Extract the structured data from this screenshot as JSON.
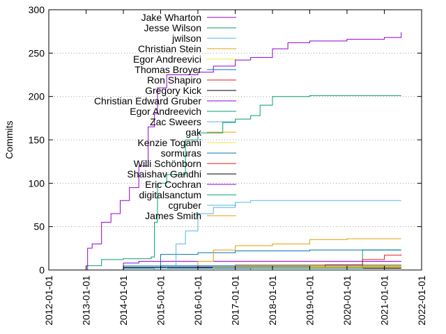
{
  "chart_data": {
    "type": "line",
    "title": "",
    "xlabel": "",
    "ylabel": "Commits",
    "xlim": [
      "2012-01-01",
      "2022-01-01"
    ],
    "ylim": [
      0,
      300
    ],
    "x_ticks": [
      "2012-01-01",
      "2013-01-01",
      "2014-01-01",
      "2015-01-01",
      "2016-01-01",
      "2017-01-01",
      "2018-01-01",
      "2019-01-01",
      "2020-01-01",
      "2021-01-01",
      "2022-01-01"
    ],
    "y_ticks": [
      0,
      50,
      100,
      150,
      200,
      250,
      300
    ],
    "grid": "horizontal dotted at y-ticks",
    "legend_position": "top-left inside",
    "series": [
      {
        "name": "Jake Wharton",
        "color": "#9400d3",
        "points": [
          [
            "2013-01-01",
            0
          ],
          [
            "2013-01-15",
            25
          ],
          [
            "2013-03-01",
            30
          ],
          [
            "2013-06-01",
            55
          ],
          [
            "2013-09-01",
            65
          ],
          [
            "2013-12-01",
            80
          ],
          [
            "2014-03-01",
            95
          ],
          [
            "2014-06-01",
            120
          ],
          [
            "2014-09-01",
            165
          ],
          [
            "2014-11-01",
            180
          ],
          [
            "2014-12-01",
            210
          ],
          [
            "2015-03-01",
            225
          ],
          [
            "2015-06-01",
            225
          ],
          [
            "2016-01-01",
            228
          ],
          [
            "2016-06-01",
            235
          ],
          [
            "2017-01-01",
            242
          ],
          [
            "2017-06-01",
            245
          ],
          [
            "2018-01-01",
            255
          ],
          [
            "2018-06-01",
            262
          ],
          [
            "2019-01-01",
            264
          ],
          [
            "2020-01-01",
            266
          ],
          [
            "2021-01-01",
            268
          ],
          [
            "2021-06-15",
            274
          ]
        ]
      },
      {
        "name": "Jesse Wilson",
        "color": "#009e73",
        "points": [
          [
            "2012-06-01",
            0
          ],
          [
            "2013-01-01",
            5
          ],
          [
            "2013-06-01",
            12
          ],
          [
            "2014-01-01",
            13
          ],
          [
            "2014-10-01",
            15
          ],
          [
            "2014-11-01",
            55
          ],
          [
            "2014-12-01",
            100
          ],
          [
            "2015-03-01",
            110
          ],
          [
            "2015-09-01",
            150
          ],
          [
            "2016-01-01",
            158
          ],
          [
            "2016-09-01",
            170
          ],
          [
            "2017-01-01",
            174
          ],
          [
            "2017-06-01",
            178
          ],
          [
            "2017-09-01",
            190
          ],
          [
            "2018-01-01",
            200
          ],
          [
            "2019-01-01",
            201
          ],
          [
            "2021-06-15",
            201
          ]
        ]
      },
      {
        "name": "jwilson",
        "color": "#56b4e9",
        "points": [
          [
            "2014-01-01",
            0
          ],
          [
            "2014-11-01",
            2
          ],
          [
            "2015-03-01",
            5
          ],
          [
            "2015-06-01",
            30
          ],
          [
            "2015-09-01",
            45
          ],
          [
            "2016-01-01",
            65
          ],
          [
            "2016-06-01",
            72
          ],
          [
            "2017-01-01",
            78
          ],
          [
            "2017-06-01",
            80
          ],
          [
            "2021-06-15",
            80
          ]
        ]
      },
      {
        "name": "Christian Stein",
        "color": "#e69f00",
        "points": [
          [
            "2015-01-01",
            0
          ],
          [
            "2016-01-01",
            10
          ],
          [
            "2016-06-01",
            23
          ],
          [
            "2017-01-01",
            28
          ],
          [
            "2018-01-01",
            30
          ],
          [
            "2019-01-01",
            35
          ],
          [
            "2020-01-01",
            36
          ],
          [
            "2021-06-15",
            36
          ]
        ]
      },
      {
        "name": "Egor Andreevici",
        "color": "#f0e442",
        "points": [
          [
            "2016-01-01",
            0
          ],
          [
            "2016-06-01",
            3
          ],
          [
            "2021-06-15",
            3
          ]
        ]
      },
      {
        "name": "Thomas Broyer",
        "color": "#0072b2",
        "points": [
          [
            "2013-01-01",
            0
          ],
          [
            "2014-01-01",
            2
          ],
          [
            "2015-01-01",
            18
          ],
          [
            "2016-01-01",
            20
          ],
          [
            "2017-01-01",
            22
          ],
          [
            "2019-01-01",
            23
          ],
          [
            "2021-06-15",
            23
          ]
        ]
      },
      {
        "name": "Ron Shapiro",
        "color": "#e51e10",
        "points": [
          [
            "2016-06-01",
            0
          ],
          [
            "2017-01-01",
            3
          ],
          [
            "2019-06-01",
            6
          ],
          [
            "2020-06-01",
            12
          ],
          [
            "2021-01-01",
            17
          ],
          [
            "2021-06-15",
            18
          ]
        ]
      },
      {
        "name": "Gregory Kick",
        "color": "#000000",
        "points": [
          [
            "2013-06-01",
            0
          ],
          [
            "2014-01-01",
            3
          ],
          [
            "2021-06-15",
            3
          ]
        ]
      },
      {
        "name": "Christian Edward Gruber",
        "color": "#9400d3",
        "points": [
          [
            "2013-09-01",
            0
          ],
          [
            "2014-01-01",
            8
          ],
          [
            "2014-06-01",
            10
          ],
          [
            "2016-01-01",
            10
          ],
          [
            "2021-06-15",
            10
          ]
        ]
      },
      {
        "name": "Egor Andreevich",
        "color": "#009e73",
        "points": [
          [
            "2016-06-01",
            0
          ],
          [
            "2017-06-01",
            2
          ],
          [
            "2020-06-01",
            23
          ],
          [
            "2021-06-15",
            23
          ]
        ]
      },
      {
        "name": "Zac Sweers",
        "color": "#56b4e9",
        "points": [
          [
            "2013-01-01",
            0
          ],
          [
            "2014-01-01",
            5
          ],
          [
            "2021-06-15",
            5
          ]
        ]
      },
      {
        "name": "gak",
        "color": "#e69f00",
        "points": [
          [
            "2016-01-01",
            0
          ],
          [
            "2017-01-01",
            6
          ],
          [
            "2021-06-15",
            6
          ]
        ]
      },
      {
        "name": "Kenzie Togami",
        "color": "#f0e442",
        "points": [
          [
            "2016-06-01",
            0
          ],
          [
            "2019-01-01",
            4
          ],
          [
            "2021-06-15",
            4
          ]
        ]
      },
      {
        "name": "sormuras",
        "color": "#0072b2",
        "points": [
          [
            "2014-01-01",
            0
          ],
          [
            "2015-01-01",
            2
          ],
          [
            "2020-06-01",
            10
          ],
          [
            "2021-06-15",
            10
          ]
        ]
      },
      {
        "name": "Willi Schönborn",
        "color": "#e51e10",
        "points": [
          [
            "2015-01-01",
            0
          ],
          [
            "2016-01-01",
            3
          ],
          [
            "2021-06-15",
            3
          ]
        ]
      },
      {
        "name": "Shaishav Gandhi",
        "color": "#000000",
        "points": [
          [
            "2017-01-01",
            0
          ],
          [
            "2018-01-01",
            2
          ],
          [
            "2021-06-15",
            2
          ]
        ]
      },
      {
        "name": "Eric Cochran",
        "color": "#9400d3",
        "points": [
          [
            "2014-01-01",
            0
          ],
          [
            "2015-01-01",
            5
          ],
          [
            "2021-06-15",
            5
          ]
        ]
      },
      {
        "name": "digitalsanctum",
        "color": "#009e73",
        "points": [
          [
            "2016-01-01",
            0
          ],
          [
            "2016-06-01",
            3
          ],
          [
            "2021-06-15",
            3
          ]
        ]
      },
      {
        "name": "cgruber",
        "color": "#56b4e9",
        "points": [
          [
            "2013-06-01",
            0
          ],
          [
            "2014-01-01",
            4
          ],
          [
            "2021-06-15",
            4
          ]
        ]
      },
      {
        "name": "James Smith",
        "color": "#e69f00",
        "points": [
          [
            "2016-01-01",
            0
          ],
          [
            "2017-01-01",
            5
          ],
          [
            "2021-06-15",
            5
          ]
        ]
      }
    ]
  }
}
